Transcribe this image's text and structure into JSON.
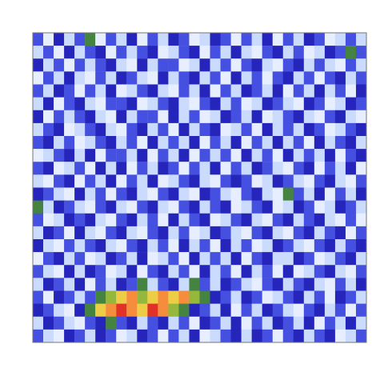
{
  "chart_data": {
    "type": "heatmap",
    "tick_labels": false,
    "zlim": [
      0,
      9
    ],
    "cells": [
      [
        3,
        1,
        4,
        2,
        3,
        5,
        1,
        3,
        2,
        4,
        1,
        3,
        2,
        4,
        3,
        1,
        2,
        4,
        3,
        1,
        3,
        2,
        4,
        1,
        3,
        2,
        4,
        3,
        1,
        2,
        3,
        2
      ],
      [
        2,
        3,
        1,
        4,
        2,
        3,
        4,
        1,
        3,
        2,
        3,
        4,
        1,
        2,
        3,
        4,
        1,
        3,
        2,
        4,
        2,
        1,
        3,
        4,
        2,
        3,
        1,
        2,
        4,
        3,
        5,
        3
      ],
      [
        4,
        2,
        3,
        1,
        3,
        2,
        3,
        4,
        2,
        1,
        4,
        2,
        3,
        3,
        1,
        2,
        4,
        2,
        3,
        1,
        3,
        4,
        2,
        1,
        3,
        4,
        2,
        3,
        2,
        1,
        3,
        2
      ],
      [
        1,
        3,
        2,
        4,
        2,
        1,
        3,
        2,
        4,
        3,
        2,
        1,
        4,
        2,
        3,
        4,
        2,
        3,
        1,
        4,
        2,
        3,
        1,
        3,
        4,
        2,
        3,
        1,
        3,
        4,
        2,
        3
      ],
      [
        3,
        2,
        4,
        3,
        1,
        3,
        2,
        4,
        1,
        2,
        3,
        4,
        2,
        1,
        3,
        2,
        4,
        1,
        3,
        2,
        4,
        3,
        2,
        4,
        1,
        3,
        2,
        4,
        2,
        3,
        1,
        4
      ],
      [
        2,
        4,
        1,
        3,
        4,
        2,
        1,
        3,
        3,
        4,
        1,
        2,
        3,
        4,
        2,
        1,
        3,
        4,
        2,
        3,
        1,
        2,
        4,
        3,
        2,
        1,
        4,
        3,
        1,
        2,
        4,
        3
      ],
      [
        4,
        1,
        3,
        2,
        3,
        4,
        2,
        1,
        4,
        2,
        3,
        3,
        1,
        4,
        2,
        3,
        1,
        2,
        4,
        3,
        2,
        4,
        1,
        2,
        3,
        4,
        2,
        1,
        3,
        4,
        2,
        1
      ],
      [
        2,
        3,
        4,
        1,
        2,
        3,
        4,
        2,
        1,
        3,
        4,
        2,
        3,
        1,
        4,
        2,
        3,
        4,
        1,
        2,
        3,
        1,
        4,
        2,
        3,
        2,
        4,
        3,
        1,
        2,
        3,
        4
      ],
      [
        3,
        4,
        2,
        3,
        1,
        2,
        3,
        4,
        2,
        3,
        1,
        4,
        2,
        3,
        2,
        4,
        1,
        3,
        2,
        4,
        1,
        3,
        2,
        4,
        2,
        3,
        1,
        4,
        2,
        3,
        4,
        2
      ],
      [
        1,
        2,
        3,
        4,
        2,
        4,
        1,
        3,
        3,
        2,
        4,
        1,
        3,
        2,
        4,
        1,
        3,
        2,
        3,
        1,
        4,
        2,
        3,
        1,
        4,
        2,
        3,
        2,
        4,
        1,
        3,
        4
      ],
      [
        3,
        4,
        1,
        2,
        3,
        1,
        4,
        2,
        4,
        1,
        3,
        2,
        4,
        3,
        1,
        3,
        2,
        4,
        1,
        3,
        2,
        4,
        3,
        2,
        1,
        3,
        4,
        1,
        3,
        2,
        4,
        1
      ],
      [
        2,
        1,
        3,
        4,
        1,
        3,
        2,
        4,
        1,
        3,
        2,
        4,
        1,
        2,
        3,
        4,
        2,
        1,
        3,
        4,
        3,
        1,
        2,
        4,
        3,
        2,
        1,
        3,
        4,
        2,
        1,
        3
      ],
      [
        4,
        3,
        2,
        1,
        4,
        2,
        3,
        1,
        3,
        4,
        2,
        1,
        3,
        4,
        2,
        1,
        4,
        3,
        2,
        1,
        3,
        4,
        2,
        1,
        5,
        3,
        2,
        4,
        1,
        3,
        2,
        4
      ],
      [
        5,
        2,
        4,
        3,
        2,
        1,
        3,
        4,
        2,
        1,
        3,
        4,
        2,
        1,
        3,
        4,
        2,
        3,
        4,
        1,
        2,
        3,
        4,
        1,
        2,
        4,
        3,
        1,
        2,
        4,
        3,
        2
      ],
      [
        3,
        1,
        2,
        4,
        3,
        4,
        2,
        1,
        3,
        4,
        2,
        3,
        1,
        4,
        2,
        3,
        4,
        1,
        2,
        3,
        4,
        2,
        1,
        3,
        4,
        2,
        3,
        4,
        2,
        1,
        3,
        1
      ],
      [
        2,
        4,
        3,
        1,
        4,
        2,
        1,
        3,
        4,
        2,
        1,
        3,
        4,
        2,
        3,
        1,
        2,
        4,
        3,
        2,
        1,
        3,
        4,
        2,
        1,
        3,
        4,
        2,
        3,
        4,
        1,
        3
      ],
      [
        4,
        2,
        1,
        3,
        2,
        3,
        4,
        2,
        1,
        3,
        4,
        2,
        3,
        1,
        4,
        2,
        3,
        1,
        4,
        2,
        3,
        1,
        2,
        4,
        3,
        2,
        1,
        3,
        4,
        2,
        3,
        4
      ],
      [
        1,
        3,
        4,
        2,
        3,
        1,
        2,
        4,
        3,
        2,
        4,
        1,
        2,
        3,
        1,
        4,
        2,
        3,
        2,
        4,
        1,
        3,
        4,
        2,
        2,
        4,
        3,
        1,
        2,
        3,
        4,
        2
      ],
      [
        3,
        2,
        1,
        4,
        2,
        4,
        3,
        1,
        2,
        4,
        1,
        3,
        4,
        2,
        3,
        1,
        4,
        2,
        3,
        1,
        4,
        2,
        3,
        1,
        4,
        1,
        2,
        3,
        4,
        2,
        1,
        3
      ],
      [
        2,
        4,
        3,
        2,
        4,
        1,
        3,
        2,
        4,
        3,
        5,
        2,
        3,
        4,
        2,
        5,
        3,
        2,
        4,
        3,
        2,
        1,
        3,
        4,
        2,
        3,
        4,
        2,
        1,
        3,
        2,
        4
      ],
      [
        3,
        1,
        4,
        3,
        2,
        3,
        5,
        6,
        7,
        8,
        6,
        7,
        8,
        7,
        8,
        6,
        5,
        4,
        3,
        2,
        4,
        3,
        1,
        2,
        3,
        4,
        2,
        3,
        1,
        4,
        3,
        2
      ],
      [
        4,
        3,
        2,
        1,
        4,
        5,
        7,
        8,
        9,
        8,
        7,
        9,
        8,
        6,
        5,
        4,
        3,
        2,
        4,
        1,
        3,
        2,
        4,
        3,
        2,
        1,
        3,
        4,
        2,
        3,
        1,
        3
      ],
      [
        2,
        4,
        3,
        2,
        1,
        3,
        4,
        5,
        3,
        4,
        2,
        3,
        4,
        2,
        3,
        1,
        4,
        3,
        2,
        4,
        1,
        3,
        2,
        4,
        3,
        2,
        4,
        1,
        3,
        2,
        4,
        2
      ],
      [
        3,
        2,
        1,
        4,
        3,
        2,
        4,
        3,
        1,
        2,
        4,
        3,
        1,
        3,
        2,
        4,
        1,
        2,
        3,
        4,
        2,
        4,
        3,
        1,
        3,
        4,
        2,
        3,
        4,
        1,
        2,
        3
      ]
    ]
  }
}
